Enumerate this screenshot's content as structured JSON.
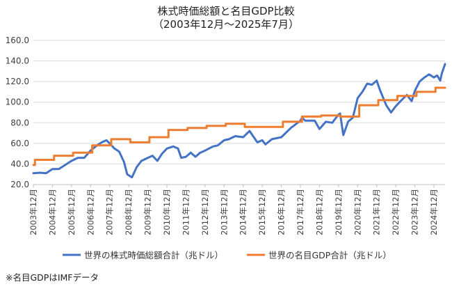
{
  "chart_data": {
    "type": "line",
    "title": "株式時価総額と名目GDP比較",
    "subtitle": "（2003年12月～2025年7月）",
    "ylim": [
      20,
      160
    ],
    "yticks": [
      "20.0",
      "40.0",
      "60.0",
      "80.0",
      "100.0",
      "120.0",
      "140.0",
      "160.0"
    ],
    "ytick_values": [
      20,
      40,
      60,
      80,
      100,
      120,
      140,
      160
    ],
    "grid": true,
    "legend_position": "bottom",
    "x_start": "2003年12月",
    "x_end": "2025年7月",
    "categories": [
      "2003年12月",
      "2004年12月",
      "2005年12月",
      "2006年12月",
      "2007年12月",
      "2008年12月",
      "2009年12月",
      "2010年12月",
      "2011年12月",
      "2012年12月",
      "2013年12月",
      "2014年12月",
      "2015年12月",
      "2016年12月",
      "2017年12月",
      "2018年12月",
      "2019年12月",
      "2020年12月",
      "2021年12月",
      "2022年12月",
      "2023年12月",
      "2024年12月"
    ],
    "series": [
      {
        "name": "世界の株式時価総額合計（兆ドル）",
        "color": "#4472C4",
        "points": [
          [
            "2003-12",
            31
          ],
          [
            "2004-04",
            31.5
          ],
          [
            "2004-08",
            31
          ],
          [
            "2004-12",
            35
          ],
          [
            "2005-04",
            35
          ],
          [
            "2005-08",
            39
          ],
          [
            "2005-12",
            43
          ],
          [
            "2006-04",
            46
          ],
          [
            "2006-08",
            46
          ],
          [
            "2006-12",
            53
          ],
          [
            "2007-04",
            58
          ],
          [
            "2007-07",
            61
          ],
          [
            "2007-10",
            63
          ],
          [
            "2007-12",
            60
          ],
          [
            "2008-03",
            55
          ],
          [
            "2008-06",
            52
          ],
          [
            "2008-09",
            42
          ],
          [
            "2008-11",
            30
          ],
          [
            "2009-02",
            27
          ],
          [
            "2009-05",
            37
          ],
          [
            "2009-08",
            43
          ],
          [
            "2009-12",
            46
          ],
          [
            "2010-03",
            48
          ],
          [
            "2010-06",
            43
          ],
          [
            "2010-09",
            50
          ],
          [
            "2010-12",
            55
          ],
          [
            "2011-04",
            57
          ],
          [
            "2011-07",
            55
          ],
          [
            "2011-09",
            46
          ],
          [
            "2011-12",
            47
          ],
          [
            "2012-03",
            51
          ],
          [
            "2012-06",
            47
          ],
          [
            "2012-09",
            51
          ],
          [
            "2012-12",
            53
          ],
          [
            "2013-05",
            57
          ],
          [
            "2013-08",
            58
          ],
          [
            "2013-12",
            63
          ],
          [
            "2014-03",
            64
          ],
          [
            "2014-07",
            67
          ],
          [
            "2014-12",
            66
          ],
          [
            "2015-04",
            72
          ],
          [
            "2015-08",
            63
          ],
          [
            "2015-09",
            61
          ],
          [
            "2015-12",
            63
          ],
          [
            "2016-02",
            59
          ],
          [
            "2016-06",
            64
          ],
          [
            "2016-12",
            66
          ],
          [
            "2017-06",
            75
          ],
          [
            "2017-12",
            82
          ],
          [
            "2018-01",
            85
          ],
          [
            "2018-03",
            82
          ],
          [
            "2018-09",
            82
          ],
          [
            "2018-12",
            74
          ],
          [
            "2019-04",
            81
          ],
          [
            "2019-08",
            80
          ],
          [
            "2019-12",
            88
          ],
          [
            "2020-01",
            89
          ],
          [
            "2020-03",
            68
          ],
          [
            "2020-06",
            81
          ],
          [
            "2020-09",
            85
          ],
          [
            "2020-12",
            104
          ],
          [
            "2021-03",
            110
          ],
          [
            "2021-06",
            118
          ],
          [
            "2021-09",
            117
          ],
          [
            "2021-12",
            121
          ],
          [
            "2022-02",
            112
          ],
          [
            "2022-06",
            97
          ],
          [
            "2022-09",
            90
          ],
          [
            "2022-12",
            96
          ],
          [
            "2023-03",
            101
          ],
          [
            "2023-07",
            107
          ],
          [
            "2023-10",
            101
          ],
          [
            "2023-12",
            111
          ],
          [
            "2024-03",
            120
          ],
          [
            "2024-06",
            124
          ],
          [
            "2024-09",
            127
          ],
          [
            "2024-12",
            124
          ],
          [
            "2025-02",
            126
          ],
          [
            "2025-04",
            121
          ],
          [
            "2025-05",
            128
          ],
          [
            "2025-07",
            137
          ]
        ]
      },
      {
        "name": "世界の名目GDP合計（兆ドル）",
        "color": "#ED7D31",
        "points": [
          [
            "2003-12",
            39
          ],
          [
            "2004-01",
            44
          ],
          [
            "2005-01",
            48
          ],
          [
            "2006-01",
            51
          ],
          [
            "2007-01",
            58
          ],
          [
            "2008-01",
            64
          ],
          [
            "2009-01",
            61
          ],
          [
            "2010-01",
            66
          ],
          [
            "2011-01",
            73
          ],
          [
            "2012-01",
            75
          ],
          [
            "2013-01",
            77
          ],
          [
            "2014-01",
            79
          ],
          [
            "2015-01",
            76
          ],
          [
            "2016-01",
            76
          ],
          [
            "2017-01",
            81
          ],
          [
            "2018-01",
            86
          ],
          [
            "2019-01",
            87
          ],
          [
            "2020-01",
            86
          ],
          [
            "2021-01",
            97
          ],
          [
            "2022-01",
            102
          ],
          [
            "2023-01",
            106
          ],
          [
            "2024-01",
            110
          ],
          [
            "2025-01",
            114
          ],
          [
            "2025-07",
            114
          ]
        ]
      }
    ]
  },
  "note": "※名目GDPはIMFデータ"
}
